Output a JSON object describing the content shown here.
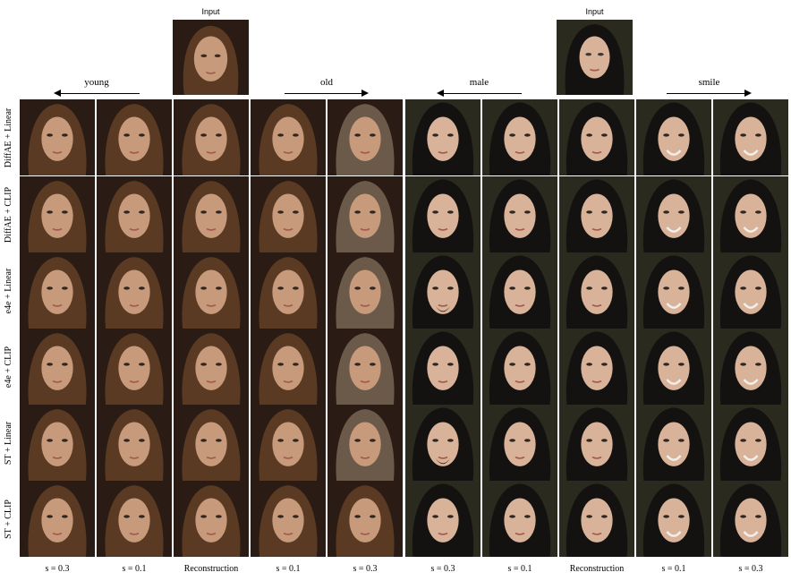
{
  "inputs": {
    "left_label": "Input",
    "right_label": "Input"
  },
  "attributes": {
    "young": "young",
    "old": "old",
    "male": "male",
    "smile": "smile"
  },
  "rows": [
    "DiffAE + Linear",
    "DiffAE + CLIP",
    "e4e + Linear",
    "e4e + CLIP",
    "ST + Linear",
    "ST + CLIP"
  ],
  "columns": [
    "s = 0.3",
    "s = 0.1",
    "Reconstruction",
    "s = 0.1",
    "s = 0.3",
    "s = 0.3",
    "s = 0.1",
    "Reconstruction",
    "s = 0.1",
    "s = 0.3"
  ],
  "colors": {
    "left_background": "#2a1c14",
    "left_hair": "#5a3a22",
    "left_skin": "#c89a7c",
    "right_background": "#2b2a1e",
    "right_hair": "#141210",
    "right_skin": "#d8b39a"
  }
}
